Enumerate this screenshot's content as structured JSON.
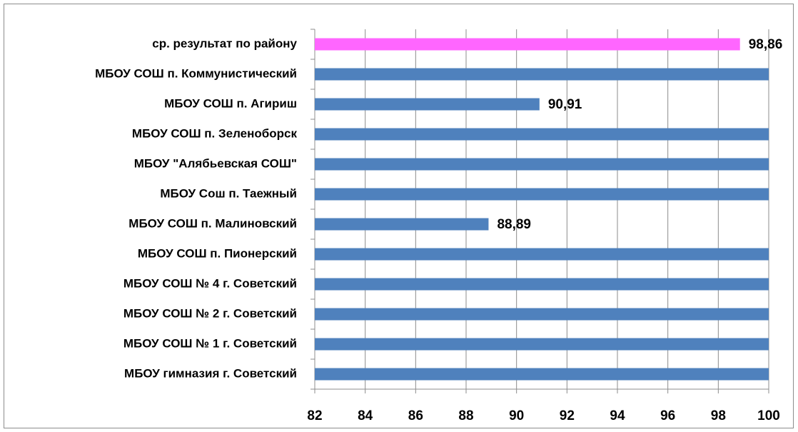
{
  "chart_data": {
    "type": "bar",
    "orientation": "horizontal",
    "categories": [
      "ср. результат по району",
      "МБОУ СОШ п. Коммунистический",
      "МБОУ СОШ п. Агириш",
      "МБОУ СОШ п. Зеленоборск",
      "МБОУ \"Алябьевская СОШ\"",
      "МБОУ Сош п. Таежный",
      "МБОУ СОШ п. Малиновский",
      "МБОУ СОШ п. Пионерский",
      "МБОУ СОШ № 4 г. Советский",
      "МБОУ СОШ № 2 г. Советский",
      "МБОУ СОШ № 1 г. Советский",
      "МБОУ гимназия г. Советский"
    ],
    "values": [
      98.86,
      100,
      90.91,
      100,
      100,
      100,
      88.89,
      100,
      100,
      100,
      100,
      100
    ],
    "value_labels": [
      "98,86",
      null,
      "90,91",
      null,
      null,
      null,
      "88,89",
      null,
      null,
      null,
      null,
      null
    ],
    "colors": [
      "#ff66ff",
      "#4f81bd",
      "#4f81bd",
      "#4f81bd",
      "#4f81bd",
      "#4f81bd",
      "#4f81bd",
      "#4f81bd",
      "#4f81bd",
      "#4f81bd",
      "#4f81bd",
      "#4f81bd"
    ],
    "xlim": [
      82,
      100
    ],
    "xticks": [
      82,
      84,
      86,
      88,
      90,
      92,
      94,
      96,
      98,
      100
    ],
    "grid": true
  }
}
